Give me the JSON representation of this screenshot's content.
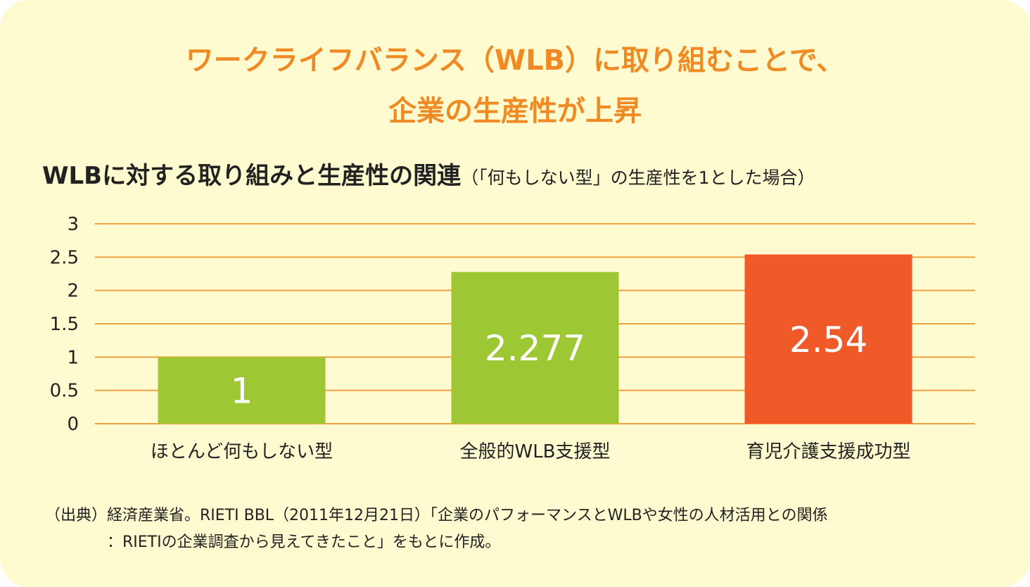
{
  "headline": {
    "line1": "ワークライフバランス（WLB）に取り組むことで、",
    "line2": "企業の生産性が上昇"
  },
  "subtitle": {
    "main": "WLBに対する取り組みと生産性の関連",
    "note": "（「何もしない型」の生産性を1とした場合）"
  },
  "source": {
    "line1": "（出典）経済産業省。RIETI BBL（2011年12月21日）「企業のパフォーマンスとWLBや女性の人材活用との関係",
    "line2": "：RIETIの企業調査から見えてきたこと」をもとに作成。"
  },
  "colors": {
    "background": "#fffbd0",
    "headline": "#f08a24",
    "gridline": "#f0a040",
    "bar_green": "#9dc834",
    "bar_orange": "#f05a28"
  },
  "chart_data": {
    "type": "bar",
    "title": "WLBに対する取り組みと生産性の関連",
    "categories": [
      "ほとんど何もしない型",
      "全般的WLB支援型",
      "育児介護支援成功型"
    ],
    "values": [
      1,
      2.277,
      2.54
    ],
    "value_labels": [
      "1",
      "2.277",
      "2.54"
    ],
    "bar_colors": [
      "#9dc834",
      "#9dc834",
      "#f05a28"
    ],
    "ylim": [
      0,
      3
    ],
    "yticks": [
      "0",
      "0.5",
      "1",
      "1.5",
      "2",
      "2.5",
      "3"
    ],
    "ytick_values": [
      0,
      0.5,
      1,
      1.5,
      2,
      2.5,
      3
    ],
    "grid": true,
    "legend": "none"
  }
}
